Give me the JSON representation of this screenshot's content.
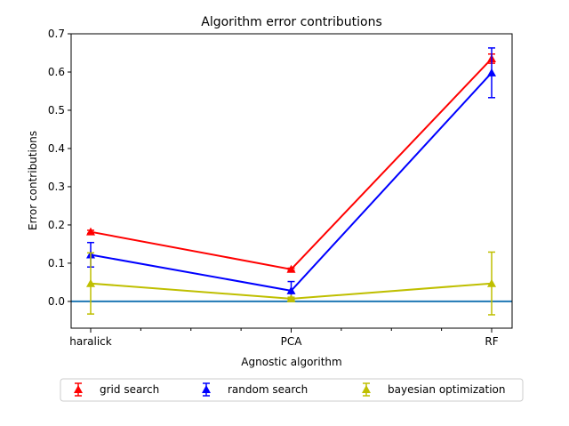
{
  "chart_data": {
    "type": "line",
    "title": "Algorithm error contributions",
    "xlabel": "Agnostic algorithm",
    "ylabel": "Error contributions",
    "categories": [
      "haralick",
      "PCA",
      "RF"
    ],
    "ylim": [
      -0.07,
      0.7
    ],
    "yticks": [
      "0.0",
      "0.1",
      "0.2",
      "0.3",
      "0.4",
      "0.5",
      "0.6",
      "0.7"
    ],
    "yticks_values": [
      0.0,
      0.1,
      0.2,
      0.3,
      0.4,
      0.5,
      0.6,
      0.7
    ],
    "reference_line": {
      "y": 0.0,
      "color": "#1f77b4"
    },
    "grid": false,
    "legend_placement": "below",
    "series": [
      {
        "name": "grid search",
        "color": "#ff0000",
        "marker": "triangle",
        "values": [
          0.182,
          0.084,
          0.635
        ],
        "errors": [
          0.004,
          0.003,
          0.012
        ]
      },
      {
        "name": "random search",
        "color": "#0000ff",
        "marker": "triangle",
        "values": [
          0.122,
          0.028,
          0.598
        ],
        "errors": [
          0.032,
          0.024,
          0.065
        ]
      },
      {
        "name": "bayesian optimization",
        "color": "#bfbf00",
        "marker": "triangle",
        "values": [
          0.047,
          0.007,
          0.047
        ],
        "errors": [
          0.08,
          0.004,
          0.082
        ]
      }
    ]
  }
}
